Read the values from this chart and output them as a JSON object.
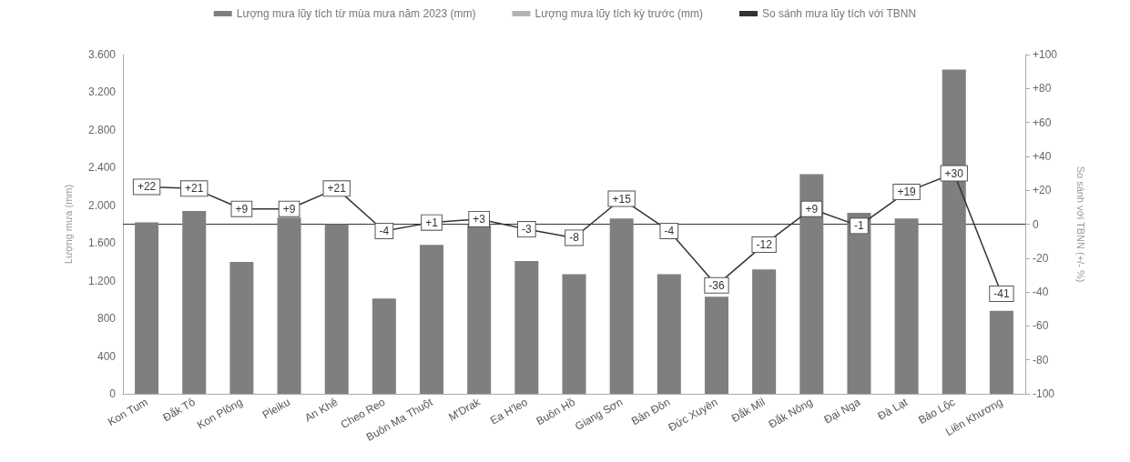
{
  "chart_data": {
    "type": "bar",
    "categories": [
      "Kon Tum",
      "Đắk Tô",
      "Kon Plông",
      "Pleiku",
      "An Khê",
      "Cheo Reo",
      "Buôn Ma Thuột",
      "M'Drak",
      "Ea H'leo",
      "Buôn Hồ",
      "Giang Sơn",
      "Bản Đôn",
      "Đức Xuyên",
      "Đắk Mil",
      "Đắk Nông",
      "Đại Nga",
      "Đà Lạt",
      "Bảo Lộc",
      "Liên Khương"
    ],
    "series": [
      {
        "name": "Lượng mưa lũy tích từ mùa mưa năm 2023 (mm)",
        "color": "#7f7f7f",
        "values": [
          1820,
          1940,
          1400,
          1870,
          1800,
          1010,
          1580,
          1790,
          1410,
          1270,
          1860,
          1270,
          1030,
          1320,
          2330,
          1920,
          1860,
          3440,
          880
        ]
      },
      {
        "name": "Lượng mưa lũy tích kỳ trước (mm)",
        "color": "#b3b3b3",
        "values": [
          null,
          null,
          null,
          null,
          null,
          null,
          null,
          null,
          null,
          null,
          null,
          null,
          null,
          null,
          null,
          null,
          null,
          null,
          null
        ]
      },
      {
        "name": "So sánh mưa lũy tích với TBNN",
        "type": "line",
        "axis": "y2",
        "color": "#333333",
        "marker": "square",
        "values": [
          22,
          21,
          9,
          9,
          21,
          -4,
          1,
          3,
          -3,
          -8,
          15,
          -4,
          -36,
          -12,
          9,
          -1,
          19,
          30,
          -41
        ],
        "value_labels": [
          "+22",
          "+21",
          "+9",
          "+9",
          "+21",
          "-4",
          "+1",
          "+3",
          "-3",
          "-8",
          "+15",
          "-4",
          "-36",
          "-12",
          "+9",
          "-1",
          "+19",
          "+30",
          "-41"
        ]
      }
    ],
    "ylabel": "Lượng mưa (mm)",
    "y2label": "So sánh với TBNN (+/- %)",
    "ylim": [
      0,
      3600
    ],
    "yticks": [
      0,
      {
        "value": 400,
        "label": "400"
      },
      {
        "value": 800,
        "label": "800"
      },
      {
        "value": 1200,
        "label": "1.200"
      },
      {
        "value": 1600,
        "label": "1.600"
      },
      {
        "value": 2000,
        "label": "2.000"
      },
      {
        "value": 2400,
        "label": "2.400"
      },
      {
        "value": 2800,
        "label": "2.800"
      },
      {
        "value": 3200,
        "label": "3.200"
      },
      {
        "value": 3600,
        "label": "3.600"
      }
    ],
    "y2lim": [
      -100,
      100
    ],
    "y2ticks": [
      -100,
      -80,
      -60,
      -40,
      -20,
      0,
      {
        "value": 20,
        "label": "+20"
      },
      {
        "value": 40,
        "label": "+40"
      },
      {
        "value": 60,
        "label": "+60"
      },
      {
        "value": 80,
        "label": "+80"
      },
      {
        "value": 100,
        "label": "+100"
      }
    ],
    "ref_lines": [
      {
        "axis": "y2",
        "value": 0,
        "color": "#333333"
      }
    ],
    "grid": false,
    "legend": "top"
  }
}
